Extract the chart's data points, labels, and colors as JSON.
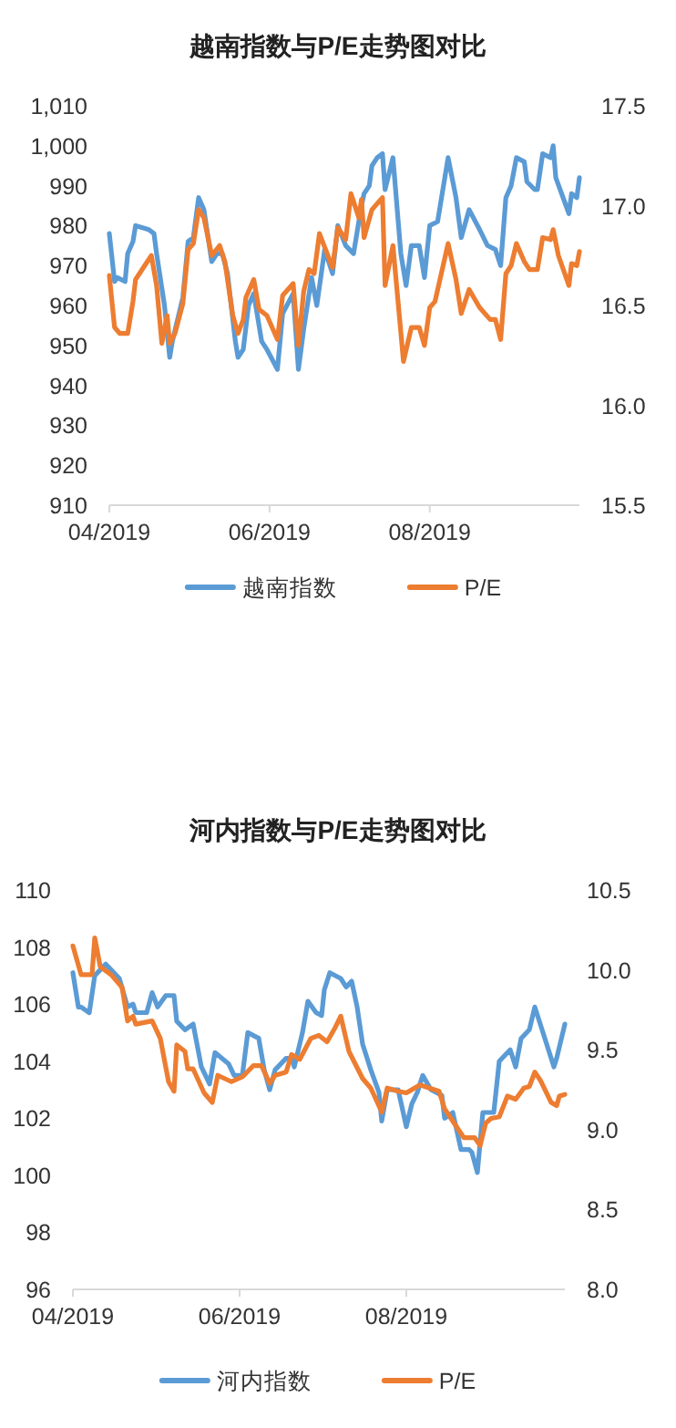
{
  "chart_data": [
    {
      "type": "line",
      "title": "越南指数与P/E走势图对比",
      "xlim": [
        "2019-04-01",
        "2019-09-27"
      ],
      "xticks": [
        {
          "value": "2019-04-01",
          "label": "04/2019"
        },
        {
          "value": "2019-06-01",
          "label": "06/2019"
        },
        {
          "value": "2019-08-01",
          "label": "08/2019"
        }
      ],
      "ylim": [
        910,
        1010
      ],
      "yticks": [
        910,
        920,
        930,
        940,
        950,
        960,
        970,
        980,
        990,
        {
          "value": 1000,
          "label": "1,000"
        },
        {
          "value": 1010,
          "label": "1,010"
        }
      ],
      "y2lim": [
        15.5,
        17.5
      ],
      "y2ticks": [
        15.5,
        {
          "value": 16,
          "label": "16.0"
        },
        16.5,
        {
          "value": 17,
          "label": "17.0"
        },
        17.5
      ],
      "legend": "bottom",
      "series": [
        {
          "name": "越南指数",
          "color": "#5b9bd5",
          "x": [
            "2019-04-01",
            "2019-04-03",
            "2019-04-04",
            "2019-04-07",
            "2019-04-08",
            "2019-04-10",
            "2019-04-11",
            "2019-04-16",
            "2019-04-18",
            "2019-04-19",
            "2019-04-22",
            "2019-04-24",
            "2019-04-25",
            "2019-04-29",
            "2019-05-01",
            "2019-05-03",
            "2019-05-05",
            "2019-05-07",
            "2019-05-10",
            "2019-05-12",
            "2019-05-14",
            "2019-05-16",
            "2019-05-19",
            "2019-05-20",
            "2019-05-22",
            "2019-05-24",
            "2019-05-26",
            "2019-05-29",
            "2019-05-31",
            "2019-06-04",
            "2019-06-06",
            "2019-06-10",
            "2019-06-12",
            "2019-06-14",
            "2019-06-17",
            "2019-06-19",
            "2019-06-22",
            "2019-06-25",
            "2019-06-27",
            "2019-06-30",
            "2019-07-03",
            "2019-07-05",
            "2019-07-06",
            "2019-07-07",
            "2019-07-09",
            "2019-07-10",
            "2019-07-12",
            "2019-07-14",
            "2019-07-15",
            "2019-07-18",
            "2019-07-19",
            "2019-07-21",
            "2019-07-23",
            "2019-07-25",
            "2019-07-28",
            "2019-07-30",
            "2019-08-01",
            "2019-08-04",
            "2019-08-08",
            "2019-08-11",
            "2019-08-13",
            "2019-08-16",
            "2019-08-20",
            "2019-08-23",
            "2019-08-26",
            "2019-08-28",
            "2019-08-30",
            "2019-09-01",
            "2019-09-03",
            "2019-09-06",
            "2019-09-07",
            "2019-09-10",
            "2019-09-11",
            "2019-09-13",
            "2019-09-16",
            "2019-09-17",
            "2019-09-18",
            "2019-09-23",
            "2019-09-24",
            "2019-09-26",
            "2019-09-27"
          ],
          "values": [
            978,
            966,
            967,
            966,
            973,
            976,
            980,
            979,
            978,
            973,
            960,
            947,
            951,
            962,
            976,
            977,
            987,
            984,
            971,
            973,
            973,
            968,
            951,
            947,
            949,
            960,
            963,
            951,
            949,
            944,
            958,
            963,
            944,
            954,
            967,
            960,
            974,
            968,
            980,
            975,
            973,
            981,
            985,
            988,
            990,
            995,
            997,
            998,
            989,
            997,
            989,
            973,
            965,
            975,
            975,
            967,
            980,
            981,
            997,
            987,
            977,
            984,
            979,
            975,
            974,
            970,
            987,
            990,
            997,
            996,
            991,
            989,
            989,
            998,
            997,
            1000,
            992,
            983,
            988,
            987,
            992
          ]
        },
        {
          "name": "P/E",
          "color": "#ed7d31",
          "axis": "y2",
          "x": [
            "2019-04-01",
            "2019-04-03",
            "2019-04-05",
            "2019-04-08",
            "2019-04-10",
            "2019-04-11",
            "2019-04-17",
            "2019-04-19",
            "2019-04-21",
            "2019-04-23",
            "2019-04-24",
            "2019-04-26",
            "2019-04-29",
            "2019-05-01",
            "2019-05-03",
            "2019-05-05",
            "2019-05-07",
            "2019-05-10",
            "2019-05-13",
            "2019-05-15",
            "2019-05-18",
            "2019-05-20",
            "2019-05-22",
            "2019-05-23",
            "2019-05-26",
            "2019-05-28",
            "2019-05-31",
            "2019-06-04",
            "2019-06-06",
            "2019-06-10",
            "2019-06-12",
            "2019-06-14",
            "2019-06-16",
            "2019-06-18",
            "2019-06-20",
            "2019-06-25",
            "2019-06-27",
            "2019-06-30",
            "2019-07-02",
            "2019-07-05",
            "2019-07-06",
            "2019-07-07",
            "2019-07-10",
            "2019-07-14",
            "2019-07-15",
            "2019-07-18",
            "2019-07-20",
            "2019-07-22",
            "2019-07-25",
            "2019-07-28",
            "2019-07-30",
            "2019-08-01",
            "2019-08-03",
            "2019-08-08",
            "2019-08-11",
            "2019-08-13",
            "2019-08-16",
            "2019-08-20",
            "2019-08-24",
            "2019-08-26",
            "2019-08-28",
            "2019-08-30",
            "2019-09-01",
            "2019-09-03",
            "2019-09-06",
            "2019-09-08",
            "2019-09-11",
            "2019-09-13",
            "2019-09-16",
            "2019-09-17",
            "2019-09-19",
            "2019-09-23",
            "2019-09-24",
            "2019-09-26",
            "2019-09-27"
          ],
          "values": [
            16.65,
            16.39,
            16.36,
            16.36,
            16.52,
            16.63,
            16.75,
            16.6,
            16.31,
            16.45,
            16.31,
            16.36,
            16.51,
            16.78,
            16.81,
            16.98,
            16.94,
            16.75,
            16.8,
            16.72,
            16.45,
            16.36,
            16.43,
            16.54,
            16.63,
            16.48,
            16.45,
            16.33,
            16.55,
            16.61,
            16.3,
            16.57,
            16.68,
            16.66,
            16.86,
            16.69,
            16.89,
            16.83,
            17.06,
            16.94,
            17.03,
            16.84,
            16.98,
            17.04,
            16.6,
            16.8,
            16.51,
            16.22,
            16.39,
            16.39,
            16.3,
            16.49,
            16.52,
            16.81,
            16.63,
            16.46,
            16.58,
            16.49,
            16.43,
            16.43,
            16.33,
            16.66,
            16.7,
            16.81,
            16.72,
            16.68,
            16.68,
            16.84,
            16.83,
            16.88,
            16.75,
            16.6,
            16.71,
            16.7,
            16.77
          ]
        }
      ]
    },
    {
      "type": "line",
      "title": "河内指数与P/E走势图对比",
      "xlim": [
        "2019-04-01",
        "2019-09-28"
      ],
      "xticks": [
        {
          "value": "2019-04-01",
          "label": "04/2019"
        },
        {
          "value": "2019-06-01",
          "label": "06/2019"
        },
        {
          "value": "2019-08-01",
          "label": "08/2019"
        }
      ],
      "ylim": [
        96,
        110
      ],
      "yticks": [
        96,
        98,
        100,
        102,
        104,
        106,
        108,
        110
      ],
      "y2lim": [
        8,
        10.5
      ],
      "y2ticks": [
        {
          "value": 8,
          "label": "8.0"
        },
        8.5,
        {
          "value": 9,
          "label": "9.0"
        },
        9.5,
        {
          "value": 10,
          "label": "10.0"
        },
        10.5
      ],
      "legend": "bottom",
      "series": [
        {
          "name": "河内指数",
          "color": "#5b9bd5",
          "x": [
            "2019-04-01",
            "2019-04-03",
            "2019-04-04",
            "2019-04-07",
            "2019-04-09",
            "2019-04-11",
            "2019-04-13",
            "2019-04-15",
            "2019-04-18",
            "2019-04-21",
            "2019-04-23",
            "2019-04-24",
            "2019-04-28",
            "2019-04-30",
            "2019-05-02",
            "2019-05-05",
            "2019-05-08",
            "2019-05-09",
            "2019-05-12",
            "2019-05-15",
            "2019-05-18",
            "2019-05-21",
            "2019-05-23",
            "2019-05-28",
            "2019-05-30",
            "2019-06-02",
            "2019-06-04",
            "2019-06-08",
            "2019-06-10",
            "2019-06-12",
            "2019-06-14",
            "2019-06-18",
            "2019-06-20",
            "2019-06-21",
            "2019-06-24",
            "2019-06-26",
            "2019-06-29",
            "2019-07-01",
            "2019-07-02",
            "2019-07-04",
            "2019-07-08",
            "2019-07-10",
            "2019-07-12",
            "2019-07-14",
            "2019-07-16",
            "2019-07-19",
            "2019-07-22",
            "2019-07-23",
            "2019-07-25",
            "2019-07-29",
            "2019-08-01",
            "2019-08-03",
            "2019-08-05",
            "2019-08-07",
            "2019-08-10",
            "2019-08-14",
            "2019-08-15",
            "2019-08-18",
            "2019-08-21",
            "2019-08-24",
            "2019-08-25",
            "2019-08-27",
            "2019-08-29",
            "2019-09-02",
            "2019-09-04",
            "2019-09-08",
            "2019-09-10",
            "2019-09-12",
            "2019-09-15",
            "2019-09-17",
            "2019-09-19",
            "2019-09-24",
            "2019-09-25",
            "2019-09-28"
          ],
          "values": [
            107.1,
            105.9,
            105.9,
            105.7,
            107.0,
            107.2,
            107.4,
            107.2,
            106.9,
            105.9,
            106.0,
            105.7,
            105.7,
            106.4,
            105.9,
            106.3,
            106.3,
            105.4,
            105.1,
            105.3,
            103.8,
            103.2,
            104.3,
            103.9,
            103.5,
            103.5,
            105.0,
            104.8,
            103.7,
            103.0,
            103.7,
            104.1,
            104.1,
            103.8,
            105.0,
            106.1,
            105.7,
            105.6,
            106.5,
            107.1,
            106.9,
            106.6,
            106.8,
            105.9,
            104.6,
            103.7,
            102.9,
            101.9,
            103.0,
            103.0,
            101.7,
            102.5,
            102.9,
            103.5,
            103.0,
            102.8,
            102.0,
            102.2,
            100.9,
            100.9,
            100.8,
            100.1,
            102.2,
            102.2,
            104.0,
            104.4,
            103.8,
            104.8,
            105.1,
            105.9,
            105.3,
            103.8,
            104.1,
            105.3
          ]
        },
        {
          "name": "P/E",
          "color": "#ed7d31",
          "axis": "y2",
          "x": [
            "2019-04-01",
            "2019-04-04",
            "2019-04-08",
            "2019-04-09",
            "2019-04-11",
            "2019-04-15",
            "2019-04-19",
            "2019-04-21",
            "2019-04-23",
            "2019-04-24",
            "2019-04-30",
            "2019-05-03",
            "2019-05-06",
            "2019-05-08",
            "2019-05-09",
            "2019-05-12",
            "2019-05-13",
            "2019-05-15",
            "2019-05-19",
            "2019-05-22",
            "2019-05-24",
            "2019-05-29",
            "2019-06-02",
            "2019-06-06",
            "2019-06-09",
            "2019-06-12",
            "2019-06-14",
            "2019-06-18",
            "2019-06-20",
            "2019-06-23",
            "2019-06-27",
            "2019-06-30",
            "2019-07-03",
            "2019-07-06",
            "2019-07-08",
            "2019-07-11",
            "2019-07-16",
            "2019-07-19",
            "2019-07-23",
            "2019-07-25",
            "2019-07-29",
            "2019-08-01",
            "2019-08-06",
            "2019-08-13",
            "2019-08-15",
            "2019-08-22",
            "2019-08-26",
            "2019-08-28",
            "2019-08-30",
            "2019-09-01",
            "2019-09-04",
            "2019-09-07",
            "2019-09-10",
            "2019-09-13",
            "2019-09-15",
            "2019-09-17",
            "2019-09-19",
            "2019-09-23",
            "2019-09-25",
            "2019-09-26",
            "2019-09-28"
          ],
          "values": [
            10.15,
            9.97,
            9.97,
            10.2,
            10.02,
            9.97,
            9.89,
            9.68,
            9.71,
            9.66,
            9.68,
            9.57,
            9.3,
            9.24,
            9.53,
            9.49,
            9.38,
            9.38,
            9.23,
            9.17,
            9.34,
            9.3,
            9.33,
            9.4,
            9.4,
            9.29,
            9.34,
            9.36,
            9.47,
            9.44,
            9.57,
            9.59,
            9.55,
            9.64,
            9.71,
            9.49,
            9.32,
            9.26,
            9.11,
            9.26,
            9.24,
            9.23,
            9.28,
            9.24,
            9.13,
            8.95,
            8.95,
            8.9,
            9.04,
            9.07,
            9.08,
            9.21,
            9.19,
            9.26,
            9.27,
            9.36,
            9.31,
            9.17,
            9.15,
            9.21,
            9.22
          ]
        }
      ]
    }
  ]
}
